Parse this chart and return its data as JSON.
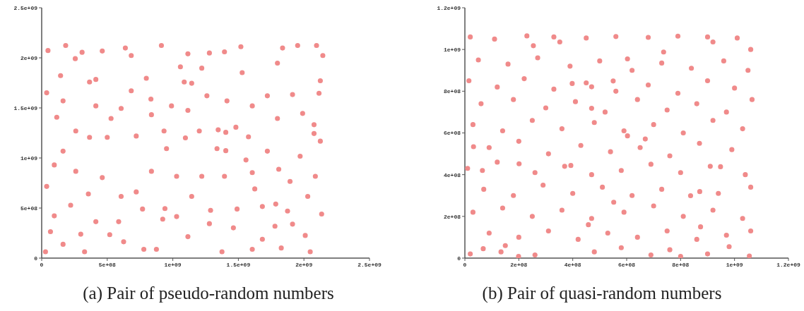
{
  "chart_data": [
    {
      "type": "scatter",
      "color": "#f08a8a",
      "marker": "circle",
      "annotations": [
        "(a) Pair of pseudo-random numbers"
      ],
      "xlim": [
        0,
        2500000000
      ],
      "ylim": [
        0,
        2500000000
      ],
      "xticks": [
        0,
        {
          "value": 500000000,
          "label": "5e+08"
        },
        {
          "value": 1000000000,
          "label": "1e+09"
        },
        {
          "value": 1500000000,
          "label": "1.5e+09"
        },
        {
          "value": 2000000000,
          "label": "2e+09"
        },
        {
          "value": 2500000000,
          "label": "2.5e+09"
        }
      ],
      "yticks": [
        0,
        {
          "value": 500000000,
          "label": "5e+08"
        },
        {
          "value": 1000000000,
          "label": "1e+09"
        },
        {
          "value": 1500000000,
          "label": "1.5e+09"
        },
        {
          "value": 2000000000,
          "label": "2e+09"
        },
        {
          "value": 2500000000,
          "label": "2.5e+09"
        }
      ],
      "x": [
        115000000.0,
        606000000.0,
        833000000.0,
        837000000.0,
        1144000000.0,
        1087000000.0,
        1096000000.0,
        1221000000.0,
        1529000000.0,
        1519000000.0,
        1837000000.0,
        2096000000.0,
        2115000000.0,
        2077000000.0,
        2077000000.0,
        1606000000.0,
        1875000000.0,
        1779000000.0,
        1827000000.0,
        1115000000.0,
        779000000.0,
        327000000.0,
        519000000.0,
        721000000.0,
        462000000.0,
        96000000.0,
        221000000.0,
        38000000.0,
        96000000.0,
        38000000.0,
        308000000.0,
        462000000.0,
        638000000.0,
        683000000.0,
        256000000.0,
        365000000.0,
        413000000.0,
        798000000.0,
        365000000.0,
        500000000.0,
        952000000.0,
        1029000000.0,
        923000000.0,
        769000000.0,
        940000000.0,
        1279000000.0,
        1288000000.0,
        1462000000.0,
        1625000000.0,
        1558000000.0,
        1404000000.0,
        1337000000.0,
        1404000000.0,
        1346000000.0,
        1481000000.0,
        1577000000.0,
        1115000000.0,
        1808000000.0,
        1785000000.0,
        2029000000.0,
        2048000000.0,
        1913000000.0,
        1798000000.0,
        1394000000.0,
        1279000000.0,
        1115000000.0,
        1058000000.0,
        2125000000.0,
        2135000000.0,
        2010000000.0,
        29000000.0,
        163000000.0,
        413000000.0,
        587000000.0,
        625000000.0,
        875000000.0,
        1375000000.0,
        1606000000.0,
        1683000000.0,
        1913000000.0,
        1894000000.0,
        2087000000.0,
        1394000000.0,
        1221000000.0,
        1029000000.0,
        837000000.0,
        260000000.0,
        163000000.0,
        260000000.0,
        163000000.0,
        144000000.0,
        48000000.0,
        183000000.0,
        913000000.0,
        1952000000.0,
        2144000000.0,
        2125000000.0,
        1721000000.0,
        1606000000.0,
        1413000000.0,
        1260000000.0,
        990000000.0,
        683000000.0,
        529000000.0,
        413000000.0,
        721000000.0,
        933000000.0,
        1202000000.0,
        1798000000.0,
        1990000000.0,
        1971000000.0,
        1721000000.0,
        1683000000.0,
        1490000000.0,
        1144000000.0,
        606000000.0,
        356000000.0,
        67000000.0,
        298000000.0
      ],
      "values": [
        1407000000.0,
        1495000000.0,
        1588000000.0,
        1432000000.0,
        1746000000.0,
        1759000000.0,
        1201000000.0,
        1897000000.0,
        1852000000.0,
        2111000000.0,
        2098000000.0,
        2123000000.0,
        1646000000.0,
        1244000000.0,
        1332000000.0,
        854000000.0,
        470000000.0,
        319000000.0,
        101000000.0,
        214000000.0,
        88000000.0,
        63000000.0,
        234000000.0,
        661000000.0,
        804000000.0,
        422000000.0,
        528000000.0,
        716000000.0,
        930000000.0,
        1651000000.0,
        2055000000.0,
        2068000000.0,
        2098000000.0,
        2023000000.0,
        1992000000.0,
        1759000000.0,
        1784000000.0,
        1796000000.0,
        1206000000.0,
        1206000000.0,
        1093000000.0,
        415000000.0,
        389000000.0,
        490000000.0,
        495000000.0,
        344000000.0,
        477000000.0,
        302000000.0,
        691000000.0,
        980000000.0,
        1073000000.0,
        1093000000.0,
        1256000000.0,
        1281000000.0,
        1307000000.0,
        1211000000.0,
        1475000000.0,
        887000000.0,
        540000000.0,
        616000000.0,
        63000000.0,
        1633000000.0,
        1947000000.0,
        2060000000.0,
        2048000000.0,
        2040000000.0,
        1910000000.0,
        1168000000.0,
        440000000.0,
        226000000.0,
        63000000.0,
        138000000.0,
        364000000.0,
        364000000.0,
        163000000.0,
        88000000.0,
        63000000.0,
        88000000.0,
        188000000.0,
        339000000.0,
        766000000.0,
        817000000.0,
        817000000.0,
        817000000.0,
        817000000.0,
        867000000.0,
        867000000.0,
        1068000000.0,
        1269000000.0,
        1570000000.0,
        1822000000.0,
        2073000000.0,
        2123000000.0,
        2123000000.0,
        2123000000.0,
        2023000000.0,
        1771000000.0,
        1621000000.0,
        1520000000.0,
        1570000000.0,
        1621000000.0,
        1520000000.0,
        1671000000.0,
        1394000000.0,
        1520000000.0,
        1219000000.0,
        1269000000.0,
        1269000000.0,
        1394000000.0,
        1445000000.0,
        1018000000.0,
        1068000000.0,
        515000000.0,
        490000000.0,
        616000000.0,
        616000000.0,
        641000000.0,
        264000000.0,
        239000000.0
      ]
    },
    {
      "type": "scatter",
      "color": "#f08a8a",
      "marker": "circle",
      "annotations": [
        "(b) Pair of quasi-random numbers"
      ],
      "xlim": [
        0,
        1200000000
      ],
      "ylim": [
        0,
        1200000000
      ],
      "xticks": [
        0,
        {
          "value": 200000000,
          "label": "2e+08"
        },
        {
          "value": 400000000,
          "label": "4e+08"
        },
        {
          "value": 600000000,
          "label": "6e+08"
        },
        {
          "value": 800000000,
          "label": "8e+08"
        },
        {
          "value": 1000000000,
          "label": "1e+09"
        },
        {
          "value": 1200000000,
          "label": "1.2e+09"
        }
      ],
      "yticks": [
        0,
        {
          "value": 200000000,
          "label": "2e+08"
        },
        {
          "value": 400000000,
          "label": "4e+08"
        },
        {
          "value": 600000000,
          "label": "6e+08"
        },
        {
          "value": 800000000,
          "label": "8e+08"
        },
        {
          "value": 1000000000,
          "label": "1e+09"
        },
        {
          "value": 1200000000,
          "label": "1.2e+09"
        }
      ],
      "x": [
        32000000.0,
        65000000.0,
        68000000.0,
        134000000.0,
        201000000.0,
        398000000.0,
        470000000.0,
        470000000.0,
        603000000.0,
        603000000.0,
        669000000.0,
        737000000.0,
        552000000.0,
        871000000.0,
        874000000.0,
        199000000.0,
        800000000.0,
        254000000.0,
        352000000.0,
        920000000.0,
        393000000.0,
        458000000.0,
        550000000.0,
        837000000.0,
        948000000.0,
        20000000.0,
        110000000.0,
        230000000.0,
        330000000.0,
        450000000.0,
        560000000.0,
        680000000.0,
        790000000.0,
        900000000.0,
        1010000000.0,
        1060000000.0,
        50000000.0,
        160000000.0,
        270000000.0,
        390000000.0,
        500000000.0,
        620000000.0,
        730000000.0,
        840000000.0,
        960000000.0,
        1050000000.0,
        15000000.0,
        120000000.0,
        220000000.0,
        330000000.0,
        450000000.0,
        560000000.0,
        680000000.0,
        790000000.0,
        900000000.0,
        1000000000.0,
        60000000.0,
        180000000.0,
        300000000.0,
        410000000.0,
        520000000.0,
        640000000.0,
        750000000.0,
        860000000.0,
        970000000.0,
        1065000000.0,
        30000000.0,
        140000000.0,
        250000000.0,
        360000000.0,
        480000000.0,
        590000000.0,
        700000000.0,
        810000000.0,
        920000000.0,
        1030000000.0,
        90000000.0,
        200000000.0,
        310000000.0,
        430000000.0,
        540000000.0,
        650000000.0,
        760000000.0,
        870000000.0,
        990000000.0,
        10000000.0,
        120000000.0,
        260000000.0,
        370000000.0,
        470000000.0,
        580000000.0,
        690000000.0,
        800000000.0,
        910000000.0,
        1040000000.0,
        70000000.0,
        180000000.0,
        290000000.0,
        400000000.0,
        510000000.0,
        620000000.0,
        730000000.0,
        940000000.0,
        1060000000.0,
        30000000.0,
        140000000.0,
        250000000.0,
        360000000.0,
        470000000.0,
        590000000.0,
        700000000.0,
        810000000.0,
        920000000.0,
        1030000000.0,
        90000000.0,
        200000000.0,
        310000000.0,
        420000000.0,
        530000000.0,
        640000000.0,
        750000000.0,
        860000000.0,
        970000000.0,
        1060000000.0,
        20000000.0,
        150000000.0,
        260000000.0,
        480000000.0,
        580000000.0,
        690000000.0,
        760000000.0,
        900000000.0,
        980000000.0,
        1055000000.0
      ],
      "values": [
        534000000.0,
        420000000.0,
        45000000.0,
        30000000.0,
        452000000.0,
        837000000.0,
        821000000.0,
        718000000.0,
        955000000.0,
        586000000.0,
        571000000.0,
        988000000.0,
        268000000.0,
        319000000.0,
        150000000.0,
        8000000.0,
        8000000.0,
        1018000000.0,
        1036000000.0,
        1036000000.0,
        444000000.0,
        160000000.0,
        849000000.0,
        299000000.0,
        438000000.0,
        1060000000.0,
        1050000000.0,
        1065000000.0,
        1060000000.0,
        1055000000.0,
        1062000000.0,
        1058000000.0,
        1064000000.0,
        1060000000.0,
        1055000000.0,
        1000000000.0,
        950000000.0,
        930000000.0,
        960000000.0,
        920000000.0,
        945000000.0,
        900000000.0,
        935000000.0,
        910000000.0,
        945000000.0,
        900000000.0,
        850000000.0,
        820000000.0,
        860000000.0,
        810000000.0,
        840000000.0,
        800000000.0,
        830000000.0,
        790000000.0,
        850000000.0,
        815000000.0,
        740000000.0,
        760000000.0,
        720000000.0,
        750000000.0,
        700000000.0,
        760000000.0,
        710000000.0,
        740000000.0,
        700000000.0,
        760000000.0,
        640000000.0,
        610000000.0,
        660000000.0,
        620000000.0,
        650000000.0,
        610000000.0,
        640000000.0,
        600000000.0,
        660000000.0,
        620000000.0,
        530000000.0,
        560000000.0,
        500000000.0,
        540000000.0,
        510000000.0,
        530000000.0,
        490000000.0,
        550000000.0,
        520000000.0,
        430000000.0,
        460000000.0,
        410000000.0,
        440000000.0,
        400000000.0,
        420000000.0,
        450000000.0,
        410000000.0,
        440000000.0,
        400000000.0,
        330000000.0,
        300000000.0,
        350000000.0,
        310000000.0,
        340000000.0,
        300000000.0,
        330000000.0,
        310000000.0,
        340000000.0,
        220000000.0,
        240000000.0,
        200000000.0,
        230000000.0,
        190000000.0,
        220000000.0,
        250000000.0,
        200000000.0,
        230000000.0,
        190000000.0,
        120000000.0,
        100000000.0,
        130000000.0,
        90000000.0,
        120000000.0,
        100000000.0,
        130000000.0,
        90000000.0,
        110000000.0,
        130000000.0,
        20000000.0,
        60000000.0,
        15000000.0,
        30000000.0,
        50000000.0,
        15000000.0,
        40000000.0,
        20000000.0,
        55000000.0,
        10000000.0
      ]
    }
  ]
}
